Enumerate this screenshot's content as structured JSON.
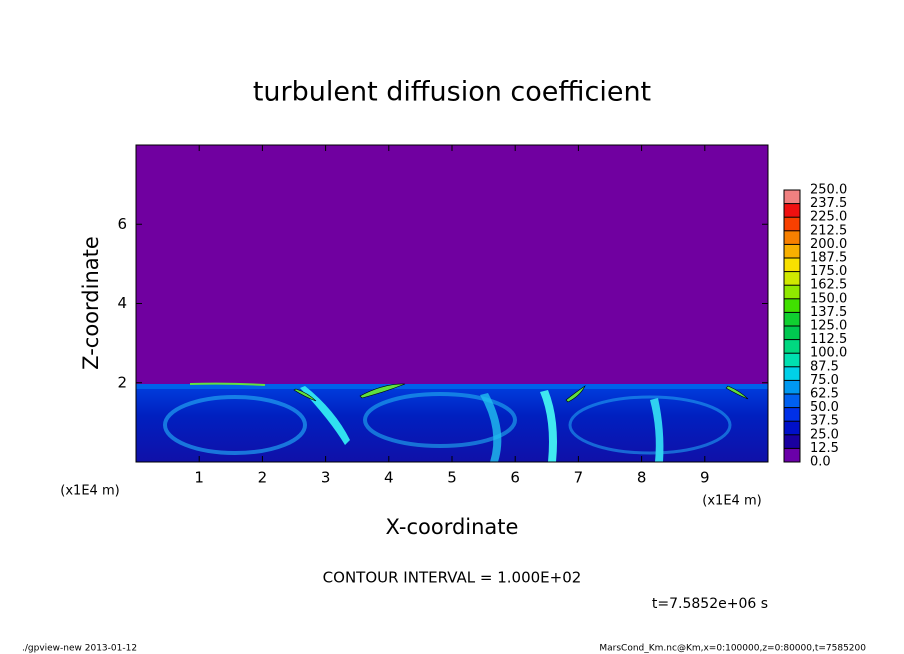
{
  "chart_data": {
    "type": "contour",
    "title": "turbulent diffusion coefficient",
    "x_label": "X-coordinate",
    "y_label": "Z-coordinate",
    "x_unit": "(x1E4 m)",
    "y_unit": "(x1E4 m)",
    "xlim": [
      0,
      10
    ],
    "xticks": [
      1,
      2,
      3,
      4,
      5,
      6,
      7,
      8,
      9
    ],
    "ylim": [
      0,
      8
    ],
    "yticks": [
      2,
      4,
      6
    ],
    "contour_interval": "CONTOUR INTERVAL = 1.000E+02",
    "time_label": "t=7.5852e+06 s",
    "footer_left": "./gpview-new  2013-01-12",
    "footer_right": "MarsCond_Km.nc@Km,x=0:100000,z=0:80000,t=7585200",
    "colorbar": {
      "levels": [
        {
          "value": 0,
          "label": "0.0"
        },
        12.5,
        {
          "value": 25,
          "label": "25.0"
        },
        37.5,
        {
          "value": 50,
          "label": "50.0"
        },
        62.5,
        {
          "value": 75,
          "label": "75.0"
        },
        87.5,
        {
          "value": 100,
          "label": "100.0"
        },
        112.5,
        {
          "value": 125,
          "label": "125.0"
        },
        137.5,
        {
          "value": 150,
          "label": "150.0"
        },
        162.5,
        {
          "value": 175,
          "label": "175.0"
        },
        187.5,
        {
          "value": 200,
          "label": "200.0"
        },
        212.5,
        {
          "value": 225,
          "label": "225.0"
        },
        237.5,
        {
          "value": 250,
          "label": "250.0"
        }
      ],
      "colors": [
        "#6a00a8",
        "#1a00a0",
        "#0010c8",
        "#0030e8",
        "#0060f0",
        "#0098f0",
        "#00d0e8",
        "#00e0b0",
        "#00d880",
        "#00c850",
        "#10d030",
        "#40e000",
        "#90e800",
        "#d0e800",
        "#f8e000",
        "#f8b000",
        "#f88000",
        "#f84000",
        "#f01010",
        "#f08080"
      ]
    }
  }
}
